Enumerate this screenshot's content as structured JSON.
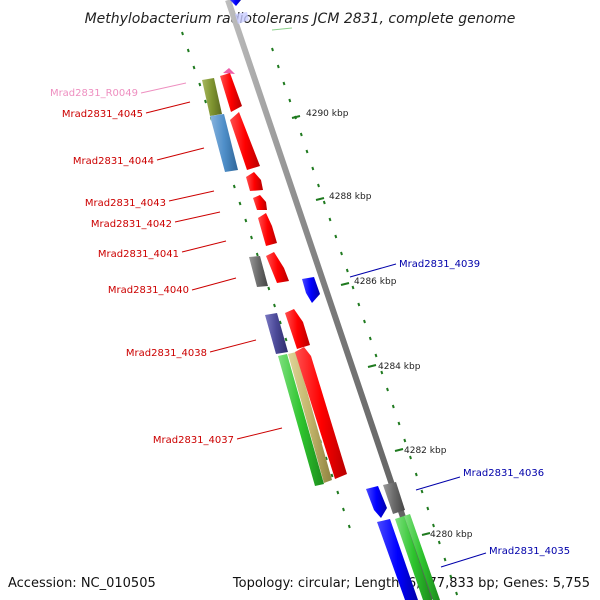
{
  "title": "Methylobacterium radiotolerans JCM 2831, complete genome",
  "accession": "Accession: NC_010505",
  "summary": "Topology: circular; Length: 6,077,833 bp; Genes: 5,755",
  "colors": {
    "cds": "#ff0000",
    "cds_dark": "#b00000",
    "reverse": "#0000ff",
    "rna": "#ee8fc0",
    "backbone": "#8c8c8c",
    "tick": "#1f7a1f",
    "label_red": "#cc0000",
    "label_blue": "#0000aa",
    "label_pink": "#ee8fc0"
  },
  "kbp_labels": [
    "4290 kbp",
    "4288 kbp",
    "4286 kbp",
    "4284 kbp",
    "4282 kbp",
    "4280 kbp"
  ],
  "gene_labels": [
    {
      "text": "Mrad2831_R0049",
      "color": "label_pink"
    },
    {
      "text": "Mrad2831_4045",
      "color": "label_red"
    },
    {
      "text": "Mrad2831_4044",
      "color": "label_red"
    },
    {
      "text": "Mrad2831_4043",
      "color": "label_red"
    },
    {
      "text": "Mrad2831_4042",
      "color": "label_red"
    },
    {
      "text": "Mrad2831_4041",
      "color": "label_red"
    },
    {
      "text": "Mrad2831_4040",
      "color": "label_red"
    },
    {
      "text": "Mrad2831_4039",
      "color": "label_blue"
    },
    {
      "text": "Mrad2831_4038",
      "color": "label_red"
    },
    {
      "text": "Mrad2831_4037",
      "color": "label_red"
    },
    {
      "text": "Mrad2831_4036",
      "color": "label_blue"
    },
    {
      "text": "Mrad2831_4035",
      "color": "label_blue"
    }
  ]
}
